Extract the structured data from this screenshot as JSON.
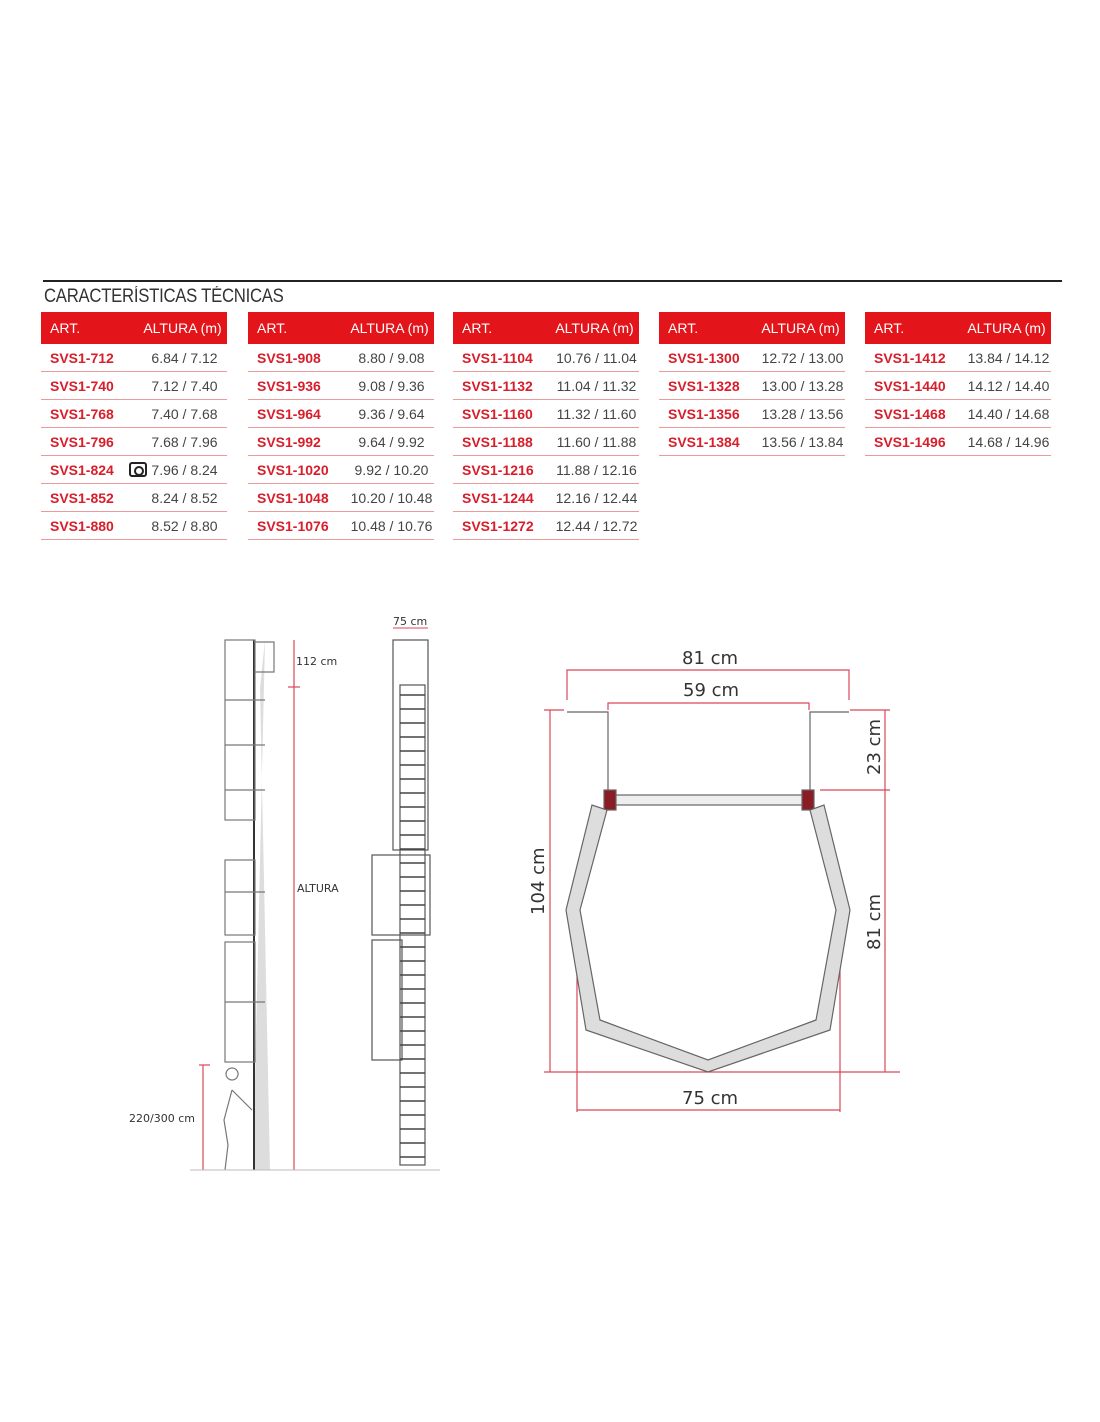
{
  "title": "CARACTERÍSTICAS TÉCNICAS",
  "table_header": {
    "art": "ART.",
    "altura": "ALTURA (m)"
  },
  "tables": [
    [
      [
        "SVS1-712",
        "6.84 / 7.12"
      ],
      [
        "SVS1-740",
        "7.12 / 7.40"
      ],
      [
        "SVS1-768",
        "7.40 / 7.68"
      ],
      [
        "SVS1-796",
        "7.68 / 7.96"
      ],
      [
        "SVS1-824",
        "7.96 / 8.24"
      ],
      [
        "SVS1-852",
        "8.24 / 8.52"
      ],
      [
        "SVS1-880",
        "8.52 / 8.80"
      ]
    ],
    [
      [
        "SVS1-908",
        "8.80 / 9.08"
      ],
      [
        "SVS1-936",
        "9.08 / 9.36"
      ],
      [
        "SVS1-964",
        "9.36 / 9.64"
      ],
      [
        "SVS1-992",
        "9.64 / 9.92"
      ],
      [
        "SVS1-1020",
        "9.92 / 10.20"
      ],
      [
        "SVS1-1048",
        "10.20 / 10.48"
      ],
      [
        "SVS1-1076",
        "10.48 / 10.76"
      ]
    ],
    [
      [
        "SVS1-1104",
        "10.76 / 11.04"
      ],
      [
        "SVS1-1132",
        "11.04 / 11.32"
      ],
      [
        "SVS1-1160",
        "11.32 / 11.60"
      ],
      [
        "SVS1-1188",
        "11.60 / 11.88"
      ],
      [
        "SVS1-1216",
        "11.88 / 12.16"
      ],
      [
        "SVS1-1244",
        "12.16 / 12.44"
      ],
      [
        "SVS1-1272",
        "12.44 / 12.72"
      ]
    ],
    [
      [
        "SVS1-1300",
        "12.72 / 13.00"
      ],
      [
        "SVS1-1328",
        "13.00 / 13.28"
      ],
      [
        "SVS1-1356",
        "13.28 / 13.56"
      ],
      [
        "SVS1-1384",
        "13.56 / 13.84"
      ]
    ],
    [
      [
        "SVS1-1412",
        "13.84 / 14.12"
      ],
      [
        "SVS1-1440",
        "14.12 / 14.40"
      ],
      [
        "SVS1-1468",
        "14.40 / 14.68"
      ],
      [
        "SVS1-1496",
        "14.68 / 14.96"
      ]
    ]
  ],
  "camera_icon_row": "SVS1-824",
  "side_view": {
    "top_label": "112 cm",
    "height_label": "ALTURA",
    "bottom_label": "220/300 cm"
  },
  "front_view": {
    "width_label": "75 cm"
  },
  "cage_plan": {
    "outer_width": "81 cm",
    "inner_width": "59 cm",
    "depth_total": "104 cm",
    "offset": "23 cm",
    "cage_depth": "81 cm",
    "cage_width": "75 cm"
  },
  "colors": {
    "accent": "#e3151b",
    "dimension": "#d9475a"
  }
}
